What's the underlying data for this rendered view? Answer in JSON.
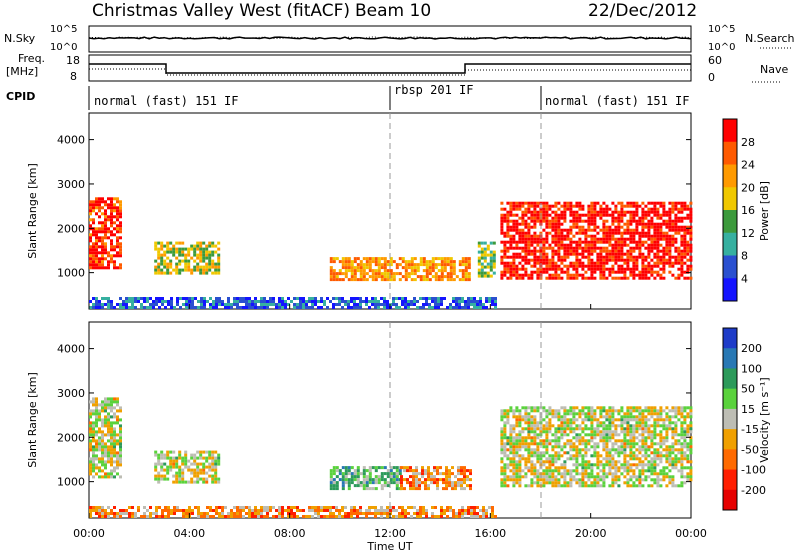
{
  "header": {
    "station": "Christmas Valley West (fitACF)",
    "beam": "Beam 10",
    "date": "22/Dec/2012"
  },
  "top_panel": {
    "nsky_label": "N.Sky",
    "nsky_ticks": [
      "10^5",
      "10^0"
    ],
    "nsearch_label": "N.Search",
    "nsearch_ticks": [
      "10^5",
      "10^0"
    ],
    "freq_label_1": "Freq.",
    "freq_label_2": "[MHz]",
    "freq_ticks": [
      "18",
      "8"
    ],
    "nave_label": "Nave",
    "nave_ticks": [
      "60",
      "0"
    ],
    "cpid_label": "CPID",
    "cpid_segments": [
      {
        "label": "normal (fast) 151 IF",
        "start_h": 0
      },
      {
        "label": "rbsp 201 IF",
        "start_h": 11.9
      },
      {
        "label": "normal (fast) 151 IF",
        "start_h": 18
      }
    ]
  },
  "chart_data": [
    {
      "type": "heatmap",
      "quantity": "Power",
      "ylabel": "Slant Range [km]",
      "xlabel": "Time UT",
      "xlim_hours": [
        0,
        24
      ],
      "ylim": [
        180,
        4600
      ],
      "yticks": [
        1000,
        2000,
        3000,
        4000
      ],
      "xticks": [
        "00:00",
        "04:00",
        "08:00",
        "12:00",
        "16:00",
        "20:00",
        "00:00"
      ],
      "colorbar": {
        "label": "Power [dB]",
        "ticks": [
          "28",
          "24",
          "20",
          "16",
          "12",
          "8",
          "4"
        ],
        "colors": [
          "#ff0000",
          "#ff5a00",
          "#ff9a00",
          "#f0c800",
          "#3c9a3c",
          "#36b0a0",
          "#2a50d0",
          "#1414ff"
        ]
      },
      "regions": [
        {
          "t": [
            0.0,
            1.2
          ],
          "r": [
            1100,
            2700
          ],
          "level": 0.12
        },
        {
          "t": [
            2.6,
            5.2
          ],
          "r": [
            980,
            1700
          ],
          "level": 0.45
        },
        {
          "t": [
            9.6,
            15.2
          ],
          "r": [
            850,
            1350
          ],
          "level": 0.3
        },
        {
          "t": [
            15.5,
            16.2
          ],
          "r": [
            950,
            1700
          ],
          "level": 0.55
        },
        {
          "t": [
            16.4,
            24.0
          ],
          "r": [
            900,
            2600
          ],
          "level": 0.05
        },
        {
          "t": [
            0.0,
            16.2
          ],
          "r": [
            200,
            450
          ],
          "level": 0.82
        }
      ]
    },
    {
      "type": "heatmap",
      "quantity": "Velocity",
      "ylabel": "Slant Range [km]",
      "xlabel": "Time UT",
      "xlim_hours": [
        0,
        24
      ],
      "ylim": [
        180,
        4600
      ],
      "yticks": [
        1000,
        2000,
        3000,
        4000
      ],
      "xticks": [
        "00:00",
        "04:00",
        "08:00",
        "12:00",
        "16:00",
        "20:00",
        "00:00"
      ],
      "colorbar": {
        "label": "Velocity [m s⁻¹]",
        "ticks": [
          "200",
          "100",
          "50",
          "15",
          "-15",
          "-50",
          "-100",
          "-200"
        ],
        "colors": [
          "#1e3cc8",
          "#2878b4",
          "#2c9a5a",
          "#5ad23c",
          "#bdbdb4",
          "#f0a000",
          "#ff6a00",
          "#ff1e00",
          "#e60000"
        ]
      },
      "regions": [
        {
          "t": [
            0.0,
            1.2
          ],
          "r": [
            1100,
            2900
          ],
          "level": 0.5
        },
        {
          "t": [
            2.6,
            5.2
          ],
          "r": [
            980,
            1700
          ],
          "level": 0.5
        },
        {
          "t": [
            9.6,
            12.4
          ],
          "r": [
            850,
            1350
          ],
          "level": 0.35
        },
        {
          "t": [
            12.4,
            15.2
          ],
          "r": [
            850,
            1350
          ],
          "level": 0.66
        },
        {
          "t": [
            16.4,
            24.0
          ],
          "r": [
            900,
            2700
          ],
          "level": 0.5
        },
        {
          "t": [
            0.0,
            16.2
          ],
          "r": [
            200,
            450
          ],
          "level": 0.66
        }
      ]
    }
  ]
}
